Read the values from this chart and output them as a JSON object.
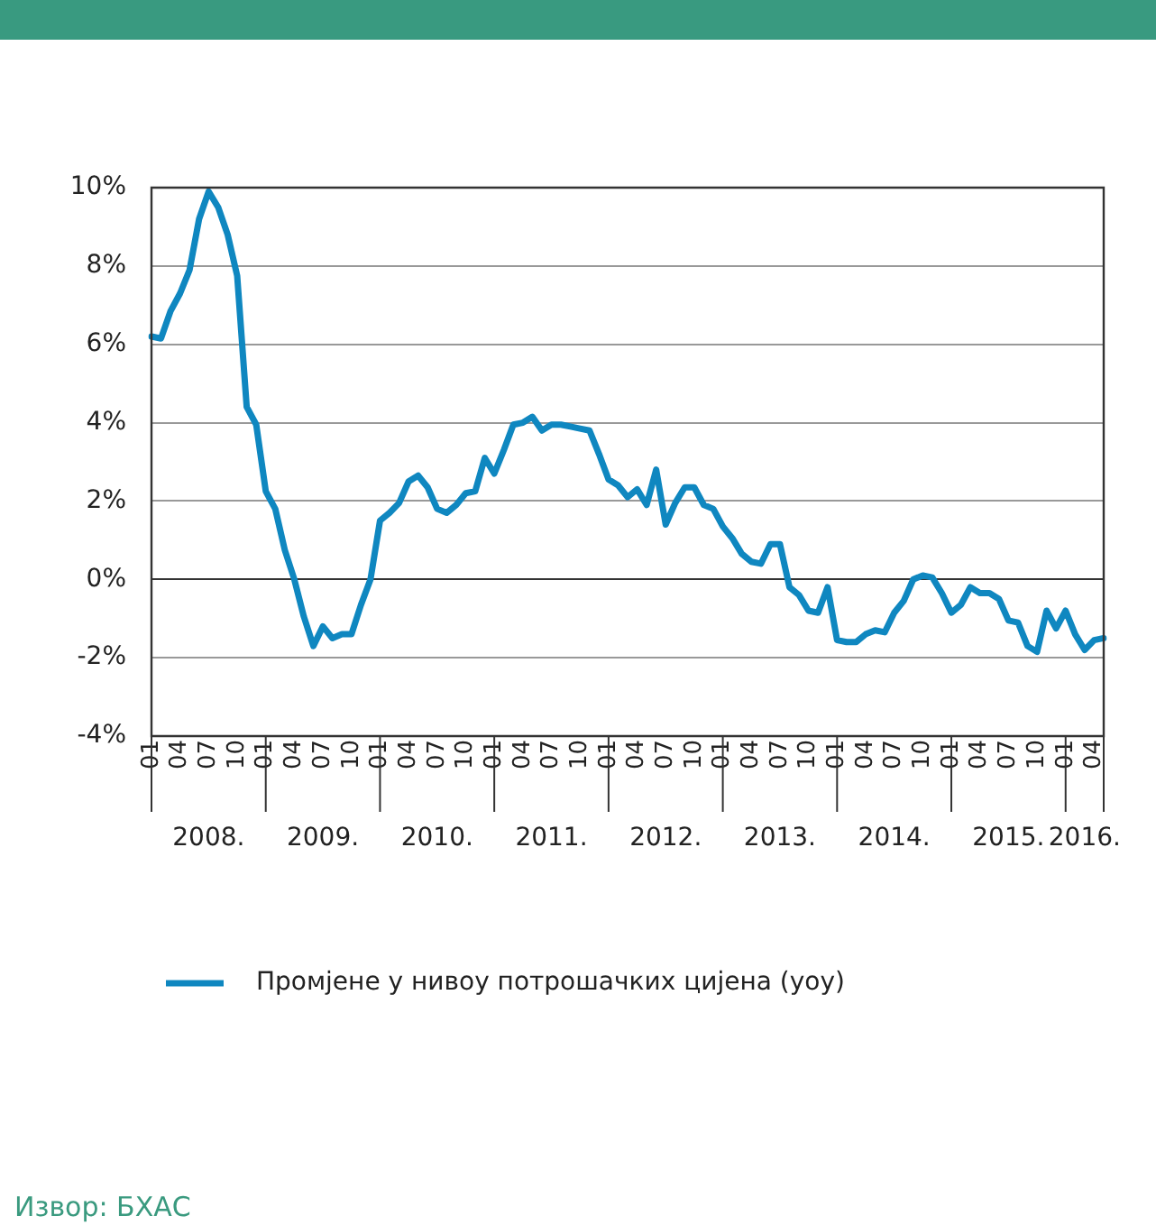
{
  "chart_data": {
    "type": "line",
    "categories": [
      "01",
      null,
      null,
      "04",
      null,
      null,
      "07",
      null,
      null,
      "10",
      null,
      null,
      "01",
      null,
      null,
      "04",
      null,
      null,
      "07",
      null,
      null,
      "10",
      null,
      null,
      "01",
      null,
      null,
      "04",
      null,
      null,
      "07",
      null,
      null,
      "10",
      null,
      null,
      "01",
      null,
      null,
      "04",
      null,
      null,
      "07",
      null,
      null,
      "10",
      null,
      null,
      "01",
      null,
      null,
      "04",
      null,
      null,
      "07",
      null,
      null,
      "10",
      null,
      null,
      "01",
      null,
      null,
      "04",
      null,
      null,
      "07",
      null,
      null,
      "10",
      null,
      null,
      "01",
      null,
      null,
      "04",
      null,
      null,
      "07",
      null,
      null,
      "10",
      null,
      null,
      "01",
      null,
      null,
      "04",
      null,
      null,
      "07",
      null,
      null,
      "10",
      null,
      null,
      "01",
      null,
      null,
      "04",
      null
    ],
    "series": [
      {
        "name": "Промјене у нивоу потрошачких цијена (yoy)",
        "color": "#0f87c0",
        "values": [
          6.2,
          6.15,
          6.85,
          7.3,
          7.9,
          9.2,
          9.9,
          9.5,
          8.8,
          7.75,
          4.4,
          3.95,
          2.25,
          1.8,
          0.75,
          0,
          -0.95,
          -1.7,
          -1.2,
          -1.5,
          -1.4,
          -1.4,
          -0.65,
          0,
          1.5,
          1.7,
          1.95,
          2.5,
          2.65,
          2.35,
          1.8,
          1.7,
          1.9,
          2.2,
          2.25,
          3.1,
          2.7,
          3.3,
          3.95,
          4.0,
          4.15,
          3.8,
          3.95,
          3.95,
          3.9,
          3.85,
          3.8,
          3.2,
          2.55,
          2.4,
          2.1,
          2.3,
          1.9,
          2.8,
          1.4,
          1.95,
          2.35,
          2.35,
          1.9,
          1.8,
          1.35,
          1.05,
          0.65,
          0.45,
          0.4,
          0.9,
          0.9,
          -0.2,
          -0.4,
          -0.8,
          -0.85,
          -0.2,
          -1.55,
          -1.6,
          -1.6,
          -1.4,
          -1.3,
          -1.35,
          -0.85,
          -0.55,
          0,
          0.1,
          0.05,
          -0.35,
          -0.85,
          -0.65,
          -0.2,
          -0.35,
          -0.35,
          -0.5,
          -1.05,
          -1.1,
          -1.7,
          -1.85,
          -0.8,
          -1.25,
          -0.8,
          -1.4,
          -1.8,
          -1.55,
          -1.5
        ]
      }
    ],
    "ylim": [
      -4,
      10
    ],
    "yticks": [
      {
        "value": -4,
        "label": "-4%"
      },
      {
        "value": -2,
        "label": "-2%"
      },
      {
        "value": 0,
        "label": "0%"
      },
      {
        "value": 2,
        "label": "2%"
      },
      {
        "value": 4,
        "label": "4%"
      },
      {
        "value": 6,
        "label": "6%"
      },
      {
        "value": 8,
        "label": "8%"
      },
      {
        "value": 10,
        "label": "10%"
      }
    ],
    "annotations": [
      "2008.",
      "2009.",
      "2010.",
      "2011.",
      "2012.",
      "2013.",
      "2014.",
      "2015.",
      "2016.",
      "Извор: БХАС"
    ],
    "grid": "y",
    "legend": "bottom",
    "marker": "none",
    "line_style": "solid"
  }
}
